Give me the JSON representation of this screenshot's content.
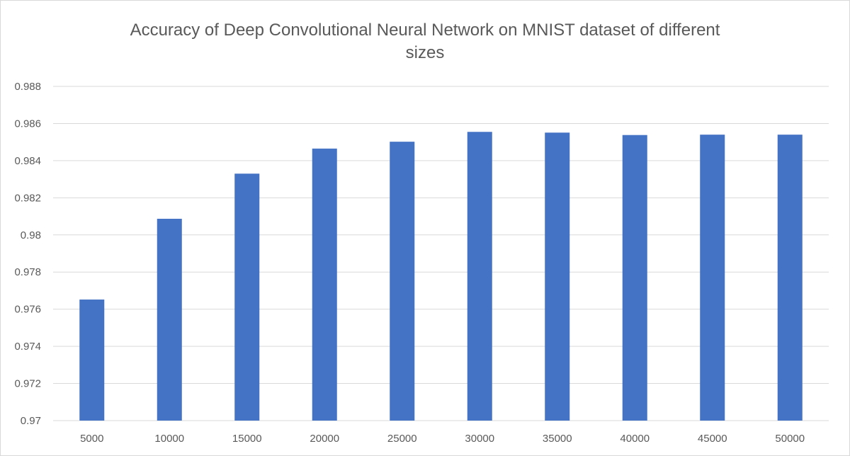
{
  "chart_data": {
    "type": "bar",
    "title": "Accuracy of Deep Convolutional Neural Network on MNIST dataset of different sizes",
    "title_lines": [
      "Accuracy of Deep Convolutional Neural Network on MNIST dataset of different",
      "sizes"
    ],
    "xlabel": "",
    "ylabel": "",
    "categories": [
      "5000",
      "10000",
      "15000",
      "20000",
      "25000",
      "30000",
      "35000",
      "40000",
      "45000",
      "50000"
    ],
    "values": [
      0.97652,
      0.98087,
      0.9833,
      0.98465,
      0.98502,
      0.98555,
      0.98551,
      0.98538,
      0.9854,
      0.9854
    ],
    "ylim": [
      0.97,
      0.988
    ],
    "yticks": [
      "0.97",
      "0.972",
      "0.974",
      "0.976",
      "0.978",
      "0.98",
      "0.982",
      "0.984",
      "0.986",
      "0.988"
    ],
    "grid": true,
    "legend": "none",
    "bar_color": "#4472c4",
    "grid_color": "#d9d9d9"
  }
}
